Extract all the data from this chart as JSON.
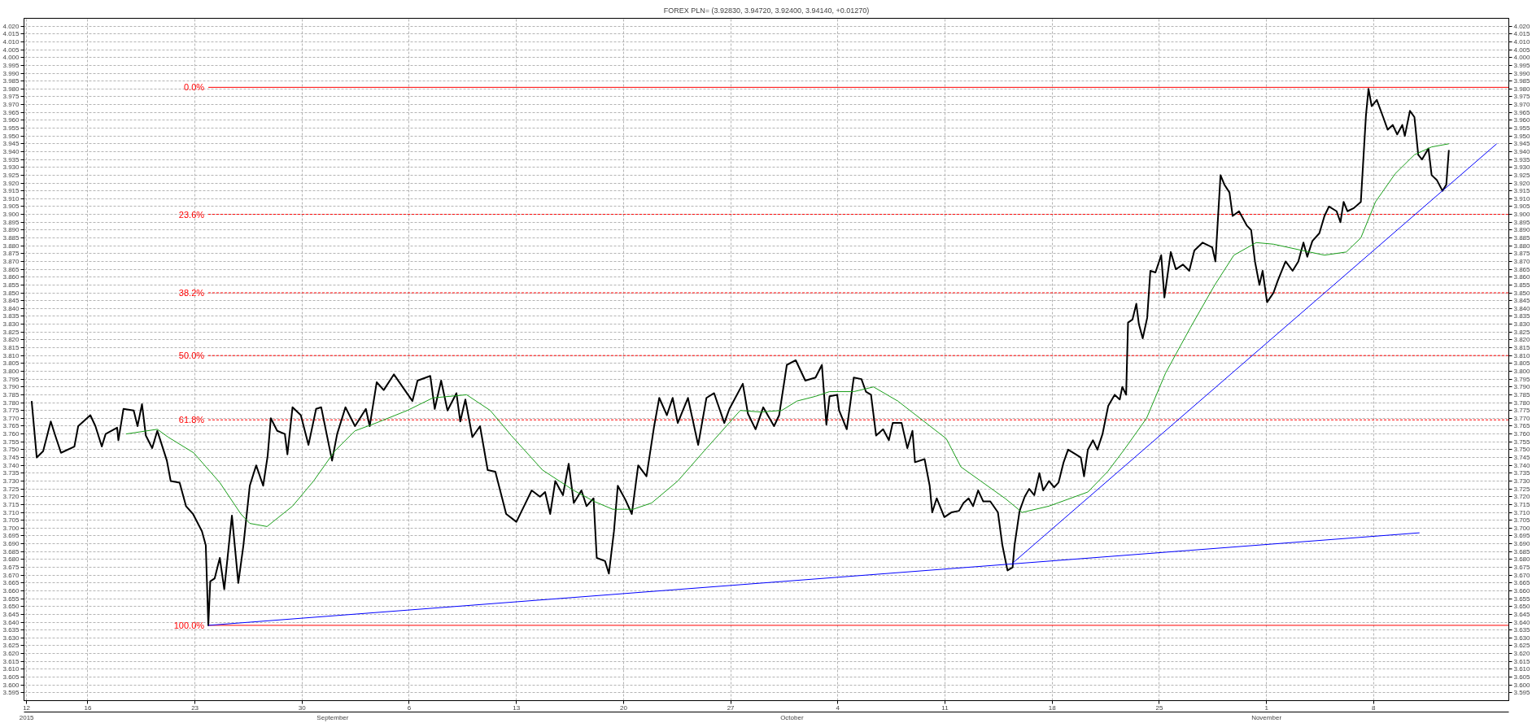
{
  "chart_data": {
    "type": "line",
    "title": "FOREX PLN= (3.92830, 3.94720, 3.92400, 3.94140, +0.01270)",
    "grid": true,
    "xlim": [
      "2015-08-11T20:00",
      "2015-11-16T20:00"
    ],
    "xticks": [
      {
        "value": "2015-08-12",
        "label": "12"
      },
      {
        "value": "2015-08-16",
        "label": "16"
      },
      {
        "value": "2015-08-23",
        "label": "23"
      },
      {
        "value": "2015-08-30",
        "label": "30"
      },
      {
        "value": "2015-09-06",
        "label": "6"
      },
      {
        "value": "2015-09-13",
        "label": "13"
      },
      {
        "value": "2015-09-20",
        "label": "20"
      },
      {
        "value": "2015-09-27",
        "label": "27"
      },
      {
        "value": "2015-10-04",
        "label": "4"
      },
      {
        "value": "2015-10-11",
        "label": "11"
      },
      {
        "value": "2015-10-18",
        "label": "18"
      },
      {
        "value": "2015-10-25",
        "label": "25"
      },
      {
        "value": "2015-11-01",
        "label": "1"
      },
      {
        "value": "2015-11-08",
        "label": "8"
      }
    ],
    "x2lim": [
      "2015-08-11T20:00",
      "2015-11-16T20:00"
    ],
    "x2ticks": [
      {
        "value": "2015-08-12",
        "label": "2015"
      },
      {
        "value": "2015-09-01",
        "label": "September"
      },
      {
        "value": "2015-10-01",
        "label": "October"
      },
      {
        "value": "2015-11-01",
        "label": "November"
      }
    ],
    "ylim": [
      3.59,
      4.025
    ],
    "yticks": [
      3.595,
      {
        "value": 3.6,
        "label": "3.600"
      },
      3.605,
      {
        "value": 3.61,
        "label": "3.610"
      },
      3.615,
      {
        "value": 3.62,
        "label": "3.620"
      },
      3.625,
      {
        "value": 3.63,
        "label": "3.630"
      },
      3.635,
      {
        "value": 3.64,
        "label": "3.640"
      },
      3.645,
      {
        "value": 3.65,
        "label": "3.650"
      },
      3.655,
      {
        "value": 3.66,
        "label": "3.660"
      },
      3.665,
      {
        "value": 3.67,
        "label": "3.670"
      },
      3.675,
      {
        "value": 3.68,
        "label": "3.680"
      },
      3.685,
      {
        "value": 3.69,
        "label": "3.690"
      },
      3.695,
      {
        "value": 3.7,
        "label": "3.700"
      },
      3.705,
      {
        "value": 3.71,
        "label": "3.710"
      },
      3.715,
      {
        "value": 3.72,
        "label": "3.720"
      },
      3.725,
      {
        "value": 3.73,
        "label": "3.730"
      },
      3.735,
      {
        "value": 3.74,
        "label": "3.740"
      },
      3.745,
      {
        "value": 3.75,
        "label": "3.750"
      },
      3.755,
      {
        "value": 3.76,
        "label": "3.760"
      },
      3.765,
      {
        "value": 3.77,
        "label": "3.770"
      },
      3.775,
      {
        "value": 3.78,
        "label": "3.780"
      },
      3.785,
      {
        "value": 3.79,
        "label": "3.790"
      },
      3.795,
      {
        "value": 3.8,
        "label": "3.800"
      },
      3.805,
      {
        "value": 3.81,
        "label": "3.810"
      },
      3.815,
      {
        "value": 3.82,
        "label": "3.820"
      },
      3.825,
      {
        "value": 3.83,
        "label": "3.830"
      },
      3.835,
      {
        "value": 3.84,
        "label": "3.840"
      },
      3.845,
      {
        "value": 3.85,
        "label": "3.850"
      },
      3.855,
      {
        "value": 3.86,
        "label": "3.860"
      },
      3.865,
      {
        "value": 3.87,
        "label": "3.870"
      },
      3.875,
      {
        "value": 3.88,
        "label": "3.880"
      },
      3.885,
      {
        "value": 3.89,
        "label": "3.890"
      },
      3.895,
      {
        "value": 3.9,
        "label": "3.900"
      },
      3.905,
      {
        "value": 3.91,
        "label": "3.910"
      },
      3.915,
      {
        "value": 3.92,
        "label": "3.920"
      },
      3.925,
      {
        "value": 3.93,
        "label": "3.930"
      },
      3.935,
      {
        "value": 3.94,
        "label": "3.940"
      },
      3.945,
      {
        "value": 3.95,
        "label": "3.950"
      },
      3.955,
      {
        "value": 3.96,
        "label": "3.960"
      },
      3.965,
      {
        "value": 3.97,
        "label": "3.970"
      },
      3.975,
      {
        "value": 3.98,
        "label": "3.980"
      },
      3.985,
      {
        "value": 3.99,
        "label": "3.990"
      },
      3.995,
      {
        "value": 4.0,
        "label": "4.000"
      },
      4.005,
      {
        "value": 4.01,
        "label": "4.010"
      },
      4.015,
      {
        "value": 4.02,
        "label": "4.020"
      }
    ],
    "y2lim": [
      3.59,
      4.025
    ],
    "y2ticks": [
      3.595,
      {
        "value": 3.6,
        "label": "3.600"
      },
      3.605,
      {
        "value": 3.61,
        "label": "3.610"
      },
      3.615,
      {
        "value": 3.62,
        "label": "3.620"
      },
      3.625,
      {
        "value": 3.63,
        "label": "3.630"
      },
      3.635,
      {
        "value": 3.64,
        "label": "3.640"
      },
      3.645,
      {
        "value": 3.65,
        "label": "3.650"
      },
      3.655,
      {
        "value": 3.66,
        "label": "3.660"
      },
      3.665,
      {
        "value": 3.67,
        "label": "3.670"
      },
      3.675,
      {
        "value": 3.68,
        "label": "3.680"
      },
      3.685,
      {
        "value": 3.69,
        "label": "3.690"
      },
      3.695,
      {
        "value": 3.7,
        "label": "3.700"
      },
      3.705,
      {
        "value": 3.71,
        "label": "3.710"
      },
      3.715,
      {
        "value": 3.72,
        "label": "3.720"
      },
      3.725,
      {
        "value": 3.73,
        "label": "3.730"
      },
      3.735,
      {
        "value": 3.74,
        "label": "3.740"
      },
      3.745,
      {
        "value": 3.75,
        "label": "3.750"
      },
      3.755,
      {
        "value": 3.76,
        "label": "3.760"
      },
      3.765,
      {
        "value": 3.77,
        "label": "3.770"
      },
      3.775,
      {
        "value": 3.78,
        "label": "3.780"
      },
      3.785,
      {
        "value": 3.79,
        "label": "3.790"
      },
      3.795,
      {
        "value": 3.8,
        "label": "3.800"
      },
      3.805,
      {
        "value": 3.81,
        "label": "3.810"
      },
      3.815,
      {
        "value": 3.82,
        "label": "3.820"
      },
      3.825,
      {
        "value": 3.83,
        "label": "3.830"
      },
      3.835,
      {
        "value": 3.84,
        "label": "3.840"
      },
      3.845,
      {
        "value": 3.85,
        "label": "3.850"
      },
      3.855,
      {
        "value": 3.86,
        "label": "3.860"
      },
      3.865,
      {
        "value": 3.87,
        "label": "3.870"
      },
      3.875,
      {
        "value": 3.88,
        "label": "3.880"
      },
      3.885,
      {
        "value": 3.89,
        "label": "3.890"
      },
      3.895,
      {
        "value": 3.9,
        "label": "3.900"
      },
      3.905,
      {
        "value": 3.91,
        "label": "3.910"
      },
      3.915,
      {
        "value": 3.92,
        "label": "3.920"
      },
      3.925,
      {
        "value": 3.93,
        "label": "3.930"
      },
      3.935,
      {
        "value": 3.94,
        "label": "3.940"
      },
      3.945,
      {
        "value": 3.95,
        "label": "3.950"
      },
      3.955,
      {
        "value": 3.96,
        "label": "3.960"
      },
      3.965,
      {
        "value": 3.97,
        "label": "3.970"
      },
      3.975,
      {
        "value": 3.98,
        "label": "3.980"
      },
      3.985,
      {
        "value": 3.99,
        "label": "3.990"
      },
      3.995,
      {
        "value": 4.0,
        "label": "4.000"
      },
      4.005,
      {
        "value": 4.01,
        "label": "4.010"
      },
      4.015,
      {
        "value": 4.02,
        "label": "4.020"
      }
    ],
    "series": [
      {
        "color": "#000000",
        "line_style": "solid",
        "x": [
          "2015-08-12T08:00",
          "2015-08-12T16:00",
          "2015-08-13T02:00",
          "2015-08-13T14:00",
          "2015-08-13T21:00",
          "2015-08-14T06:00",
          "2015-08-15T03:00",
          "2015-08-15T09:00",
          "2015-08-16T04:00",
          "2015-08-16T12:00",
          "2015-08-16T22:00",
          "2015-08-17T04:00",
          "2015-08-17T22:00",
          "2015-08-18T00:00",
          "2015-08-18T08:00",
          "2015-08-19T00:00",
          "2015-08-19T06:00",
          "2015-08-19T13:00",
          "2015-08-19T19:00",
          "2015-08-20T05:00",
          "2015-08-20T13:00",
          "2015-08-20T17:00",
          "2015-08-21T04:00",
          "2015-08-21T10:00",
          "2015-08-22T00:00",
          "2015-08-22T10:00",
          "2015-08-22T21:00",
          "2015-08-23T11:00",
          "2015-08-23T17:00",
          "2015-08-23T21:00",
          "2015-08-24T00:00",
          "2015-08-24T07:00",
          "2015-08-24T15:00",
          "2015-08-24T22:00",
          "2015-08-25T10:00",
          "2015-08-25T20:00",
          "2015-08-26T04:00",
          "2015-08-26T14:00",
          "2015-08-27T00:00",
          "2015-08-27T11:00",
          "2015-08-27T18:00",
          "2015-08-27T23:00",
          "2015-08-28T09:00",
          "2015-08-28T21:00",
          "2015-08-29T01:00",
          "2015-08-29T09:00",
          "2015-08-29T22:00",
          "2015-08-30T10:00",
          "2015-08-30T22:00",
          "2015-08-31T06:00",
          "2015-08-31T23:00",
          "2015-09-01T07:00",
          "2015-09-01T20:00",
          "2015-09-02T11:00",
          "2015-09-03T04:00",
          "2015-09-03T10:00",
          "2015-09-03T21:00",
          "2015-09-04T08:00",
          "2015-09-05T00:00",
          "2015-09-05T17:00",
          "2015-09-06T05:00",
          "2015-09-06T13:00",
          "2015-09-07T09:00",
          "2015-09-07T16:00",
          "2015-09-08T02:00",
          "2015-09-08T12:00",
          "2015-09-09T02:00",
          "2015-09-09T08:00",
          "2015-09-09T16:00",
          "2015-09-10T03:00",
          "2015-09-10T15:00",
          "2015-09-11T03:00",
          "2015-09-11T15:00",
          "2015-09-12T08:00",
          "2015-09-13T00:00",
          "2015-09-13T12:00",
          "2015-09-14T00:00",
          "2015-09-14T13:00",
          "2015-09-14T21:00",
          "2015-09-15T05:00",
          "2015-09-15T13:00",
          "2015-09-16T01:00",
          "2015-09-16T10:00",
          "2015-09-16T18:00",
          "2015-09-17T06:00",
          "2015-09-17T14:00",
          "2015-09-18T01:00",
          "2015-09-18T06:00",
          "2015-09-18T19:00",
          "2015-09-19T01:00",
          "2015-09-19T09:00",
          "2015-09-19T15:00",
          "2015-09-20T03:00",
          "2015-09-20T13:00",
          "2015-09-20T23:00",
          "2015-09-21T12:00",
          "2015-09-22T00:00",
          "2015-09-22T08:00",
          "2015-09-22T20:00",
          "2015-09-23T05:00",
          "2015-09-23T13:00",
          "2015-09-24T05:00",
          "2015-09-24T21:00",
          "2015-09-25T10:00",
          "2015-09-25T22:00",
          "2015-09-26T14:00",
          "2015-09-26T22:00",
          "2015-09-27T19:00",
          "2015-09-28T03:00",
          "2015-09-28T15:00",
          "2015-09-29T03:00",
          "2015-09-29T20:00",
          "2015-09-30T04:00",
          "2015-09-30T16:00",
          "2015-10-01T06:00",
          "2015-10-01T21:00",
          "2015-10-02T13:00",
          "2015-10-02T23:00",
          "2015-10-03T06:00",
          "2015-10-03T11:00",
          "2015-10-03T23:00",
          "2015-10-04T02:00",
          "2015-10-04T14:00",
          "2015-10-05T01:00",
          "2015-10-05T13:00",
          "2015-10-05T20:00",
          "2015-10-06T04:00",
          "2015-10-06T12:00",
          "2015-10-06T23:00",
          "2015-10-07T08:00",
          "2015-10-07T14:00",
          "2015-10-08T04:00",
          "2015-10-08T13:00",
          "2015-10-08T21:00",
          "2015-10-09T01:00",
          "2015-10-09T16:00",
          "2015-10-10T00:00",
          "2015-10-10T04:00",
          "2015-10-10T11:00",
          "2015-10-10T23:00",
          "2015-10-11T10:00",
          "2015-10-11T22:00",
          "2015-10-12T05:00",
          "2015-10-12T13:00",
          "2015-10-12T20:00",
          "2015-10-13T04:00",
          "2015-10-13T12:00",
          "2015-10-13T23:00",
          "2015-10-14T11:00",
          "2015-10-14T18:00",
          "2015-10-15T02:00",
          "2015-10-15T10:00",
          "2015-10-15T13:00",
          "2015-10-15T21:00",
          "2015-10-16T05:00",
          "2015-10-16T12:00",
          "2015-10-16T20:00",
          "2015-10-17T04:00",
          "2015-10-17T10:00",
          "2015-10-17T19:00",
          "2015-10-18T03:00",
          "2015-10-18T10:00",
          "2015-10-18T18:00",
          "2015-10-19T01:00",
          "2015-10-19T13:00",
          "2015-10-19T21:00",
          "2015-10-20T02:00",
          "2015-10-20T08:00",
          "2015-10-20T16:00",
          "2015-10-20T23:00",
          "2015-10-21T07:00",
          "2015-10-21T16:00",
          "2015-10-22T02:00",
          "2015-10-22T10:00",
          "2015-10-22T14:00",
          "2015-10-22T20:00",
          "2015-10-22T23:00",
          "2015-10-23T06:00",
          "2015-10-23T12:00",
          "2015-10-23T16:00",
          "2015-10-23T22:00",
          "2015-10-24T05:00",
          "2015-10-24T10:00",
          "2015-10-24T18:00",
          "2015-10-25T03:00",
          "2015-10-25T08:00",
          "2015-10-25T18:00",
          "2015-10-26T02:00",
          "2015-10-26T13:00",
          "2015-10-26T23:00",
          "2015-10-27T07:00",
          "2015-10-27T20:00",
          "2015-10-28T11:00",
          "2015-10-28T16:00",
          "2015-10-29T00:00",
          "2015-10-29T06:00",
          "2015-10-29T14:00",
          "2015-10-29T19:00",
          "2015-10-30T05:00",
          "2015-10-30T17:00",
          "2015-10-31T00:00",
          "2015-10-31T06:00",
          "2015-10-31T13:00",
          "2015-10-31T18:00",
          "2015-11-01T01:00",
          "2015-11-01T11:00",
          "2015-11-01T18:00",
          "2015-11-02T06:00",
          "2015-11-02T17:00",
          "2015-11-03T02:00",
          "2015-11-03T10:00",
          "2015-11-03T16:00",
          "2015-11-04T00:00",
          "2015-11-04T11:00",
          "2015-11-04T19:00",
          "2015-11-05T02:00",
          "2015-11-05T14:00",
          "2015-11-05T20:00",
          "2015-11-06T01:00",
          "2015-11-06T07:00",
          "2015-11-06T17:00",
          "2015-11-07T04:00",
          "2015-11-07T12:00",
          "2015-11-07T16:00",
          "2015-11-07T21:00",
          "2015-11-08T05:00",
          "2015-11-08T15:00",
          "2015-11-08T22:00",
          "2015-11-09T06:00",
          "2015-11-09T13:00",
          "2015-11-09T21:00",
          "2015-11-10T01:00",
          "2015-11-10T09:00",
          "2015-11-10T16:00",
          "2015-11-10T22:00",
          "2015-11-11T04:00",
          "2015-11-11T14:00",
          "2015-11-11T19:00",
          "2015-11-12T03:00",
          "2015-11-12T12:00",
          "2015-11-12T18:00",
          "2015-11-12T22:00"
        ],
        "values": [
          3.781,
          3.745,
          3.749,
          3.768,
          3.759,
          3.748,
          3.752,
          3.765,
          3.772,
          3.765,
          3.752,
          3.76,
          3.764,
          3.756,
          3.776,
          3.775,
          3.765,
          3.779,
          3.759,
          3.751,
          3.762,
          3.757,
          3.743,
          3.73,
          3.729,
          3.714,
          3.709,
          3.698,
          3.689,
          3.638,
          3.666,
          3.668,
          3.681,
          3.661,
          3.708,
          3.665,
          3.689,
          3.727,
          3.74,
          3.727,
          3.746,
          3.77,
          3.762,
          3.76,
          3.747,
          3.777,
          3.772,
          3.753,
          3.776,
          3.777,
          3.743,
          3.76,
          3.777,
          3.765,
          3.776,
          3.765,
          3.793,
          3.788,
          3.798,
          3.788,
          3.781,
          3.794,
          3.797,
          3.776,
          3.794,
          3.775,
          3.786,
          3.768,
          3.782,
          3.758,
          3.765,
          3.737,
          3.736,
          3.709,
          3.704,
          3.714,
          3.724,
          3.72,
          3.723,
          3.709,
          3.73,
          3.721,
          3.741,
          3.716,
          3.724,
          3.714,
          3.719,
          3.681,
          3.679,
          3.671,
          3.698,
          3.727,
          3.718,
          3.709,
          3.74,
          3.733,
          3.765,
          3.783,
          3.772,
          3.783,
          3.767,
          3.783,
          3.753,
          3.783,
          3.786,
          3.767,
          3.776,
          3.792,
          3.773,
          3.763,
          3.777,
          3.765,
          3.772,
          3.804,
          3.807,
          3.794,
          3.796,
          3.804,
          3.766,
          3.784,
          3.785,
          3.775,
          3.763,
          3.796,
          3.795,
          3.787,
          3.785,
          3.759,
          3.763,
          3.756,
          3.767,
          3.767,
          3.751,
          3.762,
          3.742,
          3.744,
          3.727,
          3.71,
          3.719,
          3.707,
          3.71,
          3.711,
          3.716,
          3.719,
          3.714,
          3.724,
          3.717,
          3.717,
          3.71,
          3.689,
          3.673,
          3.675,
          3.689,
          3.711,
          3.72,
          3.725,
          3.721,
          3.735,
          3.724,
          3.73,
          3.726,
          3.729,
          3.742,
          3.75,
          3.747,
          3.745,
          3.733,
          3.75,
          3.756,
          3.75,
          3.76,
          3.778,
          3.785,
          3.782,
          3.79,
          3.785,
          3.831,
          3.833,
          3.843,
          3.83,
          3.821,
          3.834,
          3.864,
          3.863,
          3.874,
          3.847,
          3.876,
          3.865,
          3.868,
          3.864,
          3.877,
          3.882,
          3.879,
          3.87,
          3.925,
          3.919,
          3.914,
          3.899,
          3.902,
          3.893,
          3.89,
          3.87,
          3.855,
          3.864,
          3.844,
          3.85,
          3.858,
          3.87,
          3.864,
          3.87,
          3.882,
          3.873,
          3.883,
          3.888,
          3.899,
          3.905,
          3.902,
          3.895,
          3.908,
          3.902,
          3.904,
          3.908,
          3.963,
          3.98,
          3.969,
          3.973,
          3.962,
          3.954,
          3.957,
          3.951,
          3.957,
          3.95,
          3.966,
          3.962,
          3.938,
          3.935,
          3.942,
          3.925,
          3.922,
          3.915,
          3.919,
          3.941
        ]
      },
      {
        "color": "#1a9e1a",
        "line_style": "solid",
        "x": [
          "2015-08-18T12:00",
          "2015-08-20T13:00",
          "2015-08-21T06:00",
          "2015-08-22T22:00",
          "2015-08-24T15:00",
          "2015-08-26T00:00",
          "2015-08-26T14:00",
          "2015-08-27T17:00",
          "2015-08-29T09:00",
          "2015-08-30T18:00",
          "2015-09-01T03:00",
          "2015-09-02T11:00",
          "2015-09-03T20:00",
          "2015-09-05T21:00",
          "2015-09-07T13:00",
          "2015-09-09T18:00",
          "2015-09-11T07:00",
          "2015-09-12T16:00",
          "2015-09-14T17:00",
          "2015-09-16T18:00",
          "2015-09-18T02:00",
          "2015-09-19T07:00",
          "2015-09-20T15:00",
          "2015-09-21T20:00",
          "2015-09-23T13:00",
          "2015-09-25T06:00",
          "2015-09-27T15:00",
          "2015-09-28T23:00",
          "2015-09-30T08:00",
          "2015-10-01T08:00",
          "2015-10-02T13:00",
          "2015-10-03T11:00",
          "2015-10-05T01:00",
          "2015-10-06T08:00",
          "2015-10-07T22:00",
          "2015-10-09T12:00",
          "2015-10-11T02:00",
          "2015-10-12T01:00",
          "2015-10-13T08:00",
          "2015-10-14T22:00",
          "2015-10-16T01:00",
          "2015-10-17T19:00",
          "2015-10-20T08:00",
          "2015-10-21T15:00",
          "2015-10-22T17:00",
          "2015-10-24T04:00",
          "2015-10-25T10:00",
          "2015-10-27T01:00",
          "2015-10-28T15:00",
          "2015-10-29T21:00",
          "2015-10-31T08:00",
          "2015-11-01T11:00",
          "2015-11-03T08:00",
          "2015-11-04T19:00",
          "2015-11-06T05:00",
          "2015-11-07T04:00",
          "2015-11-08T03:00",
          "2015-11-09T10:00",
          "2015-11-10T16:00",
          "2015-11-11T19:00",
          "2015-11-12T22:00"
        ],
        "values": [
          3.76,
          3.763,
          3.758,
          3.748,
          3.729,
          3.709,
          3.703,
          3.701,
          3.714,
          3.73,
          3.749,
          3.762,
          3.767,
          3.775,
          3.783,
          3.785,
          3.775,
          3.759,
          3.737,
          3.724,
          3.717,
          3.712,
          3.712,
          3.716,
          3.73,
          3.749,
          3.775,
          3.774,
          3.775,
          3.781,
          3.784,
          3.787,
          3.787,
          3.79,
          3.781,
          3.769,
          3.757,
          3.739,
          3.73,
          3.719,
          3.71,
          3.714,
          3.723,
          3.736,
          3.75,
          3.77,
          3.799,
          3.828,
          3.855,
          3.874,
          3.882,
          3.881,
          3.877,
          3.874,
          3.876,
          3.885,
          3.908,
          3.926,
          3.938,
          3.943,
          3.945
        ]
      },
      {
        "color": "#0000ff",
        "line_style": "solid",
        "x": [
          "2015-08-23T21:00",
          "2015-11-11T00:00"
        ],
        "values": [
          3.638,
          3.697
        ]
      },
      {
        "color": "#0000ff",
        "line_style": "solid",
        "x": [
          "2015-10-15T11:00",
          "2015-11-16T01:00"
        ],
        "values": [
          3.678,
          3.945
        ]
      },
      {
        "name": "0.0%",
        "color": "#ff0000",
        "line_style": "solid",
        "x": [
          "2015-08-23T21:00",
          "2015-11-16T20:00"
        ],
        "values": [
          3.981,
          3.981
        ]
      },
      {
        "name": "23.6%",
        "color": "#ff0000",
        "line_style": "dashed",
        "x": [
          "2015-08-23T21:00",
          "2015-11-16T20:00"
        ],
        "values": [
          3.9,
          3.9
        ]
      },
      {
        "name": "38.2%",
        "color": "#ff0000",
        "line_style": "dashed",
        "x": [
          "2015-08-23T21:00",
          "2015-11-16T20:00"
        ],
        "values": [
          3.85,
          3.85
        ]
      },
      {
        "name": "50.0%",
        "color": "#ff0000",
        "line_style": "dashed",
        "x": [
          "2015-08-23T21:00",
          "2015-11-16T20:00"
        ],
        "values": [
          3.81,
          3.81
        ]
      },
      {
        "name": "61.8%",
        "color": "#ff0000",
        "line_style": "dashed",
        "x": [
          "2015-08-23T21:00",
          "2015-11-16T20:00"
        ],
        "values": [
          3.769,
          3.769
        ]
      },
      {
        "name": "100.0%",
        "color": "#ff0000",
        "line_style": "solid",
        "x": [
          "2015-08-23T21:00",
          "2015-11-16T20:00"
        ],
        "values": [
          3.638,
          3.638
        ]
      }
    ]
  }
}
